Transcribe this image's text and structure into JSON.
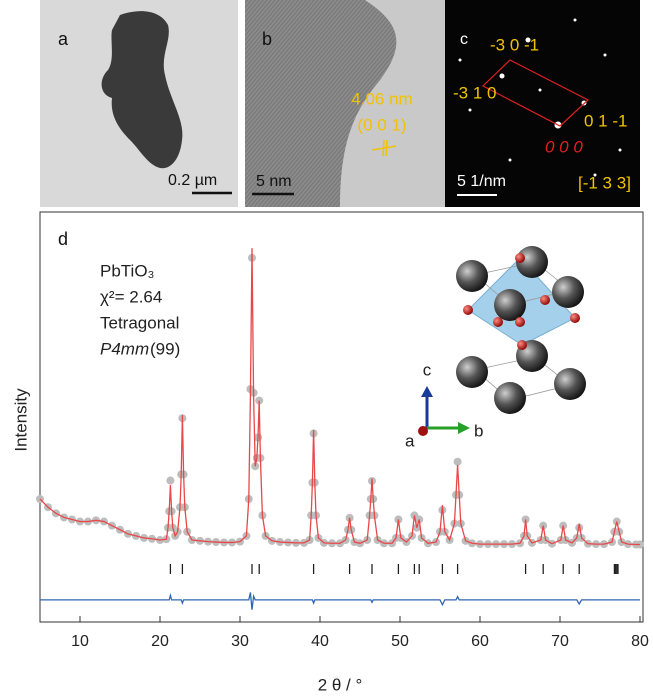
{
  "panels": [
    {
      "label": "a",
      "scale_bar": "0.2 µm"
    },
    {
      "label": "b",
      "scale_bar": "5 nm",
      "spacing": "4.06 nm",
      "plane": "(0 0 1)"
    },
    {
      "label": "c",
      "scale_bar": "5 1/nm",
      "spots": [
        "-3 0 -1",
        "-3 1 0",
        "0 1 -1",
        "0 0 0"
      ],
      "zone_axis": "[-1 3 3]"
    }
  ],
  "chart_data": {
    "type": "line",
    "label": "d",
    "xlabel": "2 θ / °",
    "ylabel": "Intensity",
    "annotations": {
      "compound": "PbTiO₃",
      "chi_squared": "χ²= 2.64",
      "system": "Tetragonal",
      "space_group": "P4mm",
      "space_group_number": "(99)"
    },
    "inset_axes": [
      "c",
      "a",
      "b"
    ],
    "xlim": [
      5,
      80
    ],
    "xticks": [
      10,
      20,
      30,
      40,
      50,
      60,
      70,
      80
    ],
    "ylim": [
      0,
      100
    ],
    "x": [
      5,
      6,
      7,
      8,
      9,
      10,
      11,
      12,
      13,
      14,
      15,
      16,
      17,
      18,
      19,
      20,
      20.8,
      21.0,
      21.15,
      21.3,
      21.45,
      21.6,
      21.9,
      22.2,
      22.5,
      22.65,
      22.8,
      22.95,
      23.1,
      23.4,
      24,
      25,
      26,
      27,
      28,
      29,
      30,
      30.8,
      31.1,
      31.3,
      31.5,
      31.7,
      31.9,
      32.1,
      32.25,
      32.4,
      32.55,
      32.8,
      33.2,
      34,
      35,
      36,
      37,
      38,
      38.7,
      38.9,
      39.05,
      39.2,
      39.35,
      39.5,
      39.8,
      40.5,
      41.5,
      42.5,
      43.2,
      43.5,
      43.7,
      43.9,
      44.3,
      45,
      45.9,
      46.2,
      46.35,
      46.5,
      46.65,
      46.8,
      47.2,
      48,
      49,
      49.5,
      49.8,
      50.1,
      50.8,
      51.5,
      51.8,
      52.1,
      52.4,
      52.7,
      53.5,
      54.5,
      55,
      55.3,
      55.6,
      56.2,
      56.8,
      57.0,
      57.2,
      57.4,
      57.6,
      58.2,
      59,
      60,
      61,
      62,
      63,
      64,
      65,
      65.5,
      65.7,
      65.9,
      66.5,
      67.6,
      67.9,
      68.2,
      69,
      70.1,
      70.4,
      70.7,
      71.5,
      72.1,
      72.4,
      72.7,
      73.5,
      74.5,
      75.5,
      76.5,
      76.8,
      77.1,
      77.4,
      77.7,
      78.5,
      79.5,
      80
    ],
    "series": [
      {
        "style": "markers",
        "color": "#bdbdbd",
        "values": [
          30,
          28,
          26.5,
          25.5,
          25,
          24.5,
          24.5,
          24.8,
          24.5,
          23.5,
          22.5,
          21.5,
          21,
          20.5,
          20.3,
          20,
          20.2,
          23,
          27,
          34.5,
          27,
          23,
          21,
          22,
          28,
          36,
          49.7,
          36,
          28,
          22,
          20,
          19.8,
          19.6,
          19.5,
          19.4,
          19.4,
          19.6,
          21,
          30,
          56.8,
          88.8,
          55.9,
          38,
          40,
          45,
          54,
          40,
          26,
          21,
          19.8,
          19.5,
          19.4,
          19.3,
          19.3,
          20,
          26,
          34,
          46,
          34,
          26,
          20.5,
          19.3,
          19.2,
          19.2,
          20,
          22.5,
          25.4,
          22.5,
          19.5,
          19.2,
          20,
          26,
          30,
          34.4,
          30,
          26,
          20,
          19.2,
          19.2,
          20.5,
          25,
          20.5,
          19.5,
          21,
          26,
          23,
          25,
          20.5,
          19.2,
          19.5,
          22,
          27.3,
          22,
          20,
          24,
          31,
          39.1,
          31,
          24,
          19.8,
          19.2,
          19,
          19,
          19,
          19,
          19,
          19.2,
          21,
          25,
          21,
          19.3,
          20,
          23.5,
          20,
          19.1,
          20,
          23.5,
          20,
          19.3,
          20.5,
          23,
          20.5,
          19.1,
          19,
          19,
          19.5,
          22,
          24.5,
          22,
          19.5,
          19,
          18.9,
          18.9
        ]
      },
      {
        "style": "line",
        "color": "#e8484a",
        "values": [
          30,
          28,
          26.5,
          25.5,
          25,
          24.5,
          24.5,
          24.8,
          24.5,
          23.5,
          22.5,
          21.5,
          21,
          20.5,
          20.3,
          20,
          20.2,
          23,
          27,
          33.4,
          27,
          23,
          21,
          22,
          28,
          36,
          50.5,
          36,
          28,
          22,
          20,
          19.8,
          19.6,
          19.5,
          19.4,
          19.4,
          19.6,
          21,
          30,
          55,
          91.2,
          55,
          38,
          40,
          45,
          54,
          40,
          26,
          21,
          19.8,
          19.5,
          19.4,
          19.3,
          19.3,
          20,
          26,
          34,
          46.8,
          34,
          26,
          20.5,
          19.3,
          19.2,
          19.2,
          20,
          22.5,
          25.4,
          22.5,
          19.5,
          19.2,
          20,
          26,
          30,
          35,
          30,
          26,
          20,
          19.2,
          19.2,
          20.5,
          25,
          20.5,
          19.5,
          21,
          26,
          23,
          25,
          20.5,
          19.2,
          19.5,
          22,
          28.5,
          22,
          20,
          24,
          31,
          38.3,
          31,
          24,
          19.8,
          19.2,
          19,
          19,
          19,
          19,
          19,
          19.2,
          21,
          25,
          21,
          19.3,
          20,
          23.5,
          20,
          19.1,
          20,
          23.5,
          20,
          19.3,
          20.5,
          24,
          20.5,
          19.1,
          19,
          19,
          19.5,
          22,
          24.5,
          22,
          19.5,
          19,
          18.9,
          18.9
        ]
      },
      {
        "style": "line",
        "color": "#2f66b3",
        "values": [
          5.4,
          5.4,
          5.4,
          5.4,
          5.4,
          5.4,
          5.4,
          5.4,
          5.4,
          5.4,
          5.4,
          5.4,
          5.4,
          5.4,
          5.4,
          5.4,
          5.4,
          5.4,
          5.4,
          6.5,
          5.4,
          5.4,
          5.4,
          5.4,
          5.4,
          5.4,
          4.6,
          5.4,
          5.4,
          5.4,
          5.4,
          5.4,
          5.4,
          5.4,
          5.4,
          5.4,
          5.4,
          5.4,
          5.4,
          7.2,
          3.0,
          6.3,
          5.4,
          5.4,
          5.4,
          5.4,
          5.4,
          5.4,
          5.4,
          5.4,
          5.4,
          5.4,
          5.4,
          5.4,
          5.4,
          5.4,
          5.4,
          4.6,
          5.4,
          5.4,
          5.4,
          5.4,
          5.4,
          5.4,
          5.4,
          5.4,
          5.4,
          5.4,
          5.4,
          5.4,
          5.4,
          5.4,
          5.4,
          4.8,
          5.4,
          5.4,
          5.4,
          5.4,
          5.4,
          5.4,
          5.4,
          5.4,
          5.4,
          5.4,
          5.4,
          5.4,
          5.4,
          5.4,
          5.4,
          5.4,
          5.4,
          4.2,
          5.4,
          5.4,
          5.4,
          5.4,
          6.2,
          5.4,
          5.4,
          5.4,
          5.4,
          5.4,
          5.4,
          5.4,
          5.4,
          5.4,
          5.4,
          5.4,
          5.4,
          5.4,
          5.4,
          5.4,
          5.4,
          5.4,
          5.4,
          5.4,
          5.4,
          5.4,
          5.4,
          5.4,
          4.4,
          5.4,
          5.4,
          5.4,
          5.4,
          5.4,
          5.4,
          5.4,
          5.4,
          5.4,
          5.4,
          5.4,
          5.4
        ]
      }
    ],
    "reflections": [
      21.3,
      22.8,
      31.5,
      32.4,
      39.2,
      43.7,
      46.5,
      49.8,
      51.8,
      52.4,
      55.3,
      57.2,
      65.7,
      67.9,
      70.4,
      72.4,
      76.8,
      76.95,
      77.1,
      77.25
    ],
    "reflection_color": "#222222"
  }
}
